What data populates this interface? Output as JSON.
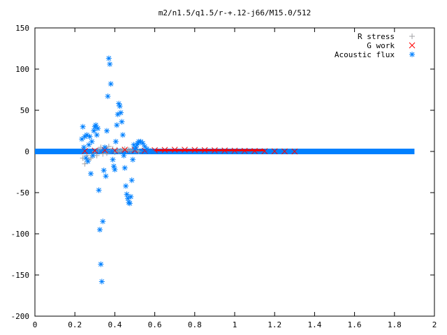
{
  "chart_data": {
    "type": "scatter",
    "title": "m2/n1.5/q1.5/r-+.12-j66/M15.0/512",
    "xlabel": "",
    "ylabel": "",
    "xlim": [
      0,
      2
    ],
    "ylim": [
      -200,
      150
    ],
    "x_ticks": [
      0,
      0.2,
      0.4,
      0.6,
      0.8,
      1,
      1.2,
      1.4,
      1.6,
      1.8,
      2
    ],
    "x_tick_labels": [
      "0",
      "0.2",
      "0.4",
      "0.6",
      "0.8",
      "1",
      "1.2",
      "1.4",
      "1.6",
      "1.8",
      "2"
    ],
    "y_ticks": [
      -200,
      -150,
      -100,
      -50,
      0,
      50,
      100,
      150
    ],
    "y_tick_labels": [
      "-200",
      "-150",
      "-100",
      "-50",
      "0",
      "50",
      "100",
      "150"
    ],
    "grid": false,
    "legend_position": "top-right",
    "series": [
      {
        "name": "R stress",
        "color": "#a0a0a4",
        "marker": "plus",
        "x": [
          0.24,
          0.25,
          0.26,
          0.27,
          0.28,
          0.29,
          0.3,
          0.31,
          0.32,
          0.33,
          0.34,
          0.35,
          0.36,
          0.37,
          0.38,
          0.39,
          0.4,
          0.41,
          0.42,
          0.43,
          0.44,
          0.45,
          0.46,
          0.47,
          0.48,
          0.49,
          0.5,
          0.51,
          0.52
        ],
        "y": [
          -8,
          -15,
          -5,
          -10,
          -8,
          -3,
          0,
          -5,
          2,
          5,
          -3,
          4,
          -2,
          6,
          1,
          3,
          -1,
          2,
          0,
          1,
          2,
          3,
          1,
          2,
          1,
          2,
          1,
          1,
          0
        ]
      },
      {
        "name": "G work",
        "color": "#ff0000",
        "marker": "cross",
        "x": [
          0.25,
          0.3,
          0.35,
          0.4,
          0.45,
          0.5,
          0.55,
          0.6,
          0.65,
          0.7,
          0.75,
          0.8,
          0.85,
          0.9,
          0.95,
          1.0,
          1.05,
          1.1,
          1.15,
          1.2,
          1.25,
          1.3
        ],
        "y": [
          0.5,
          1,
          1.5,
          1,
          2,
          1.5,
          1,
          1.5,
          1.8,
          2,
          2,
          1.8,
          1.6,
          1.4,
          1.2,
          1,
          0.8,
          0.5,
          0.3,
          0.2,
          0.1,
          0
        ]
      },
      {
        "name": "Acoustic flux",
        "color": "#0080ff",
        "marker": "star",
        "x": [
          0.235,
          0.24,
          0.245,
          0.25,
          0.255,
          0.26,
          0.265,
          0.27,
          0.275,
          0.28,
          0.285,
          0.29,
          0.295,
          0.3,
          0.305,
          0.31,
          0.315,
          0.32,
          0.325,
          0.33,
          0.335,
          0.34,
          0.345,
          0.35,
          0.355,
          0.36,
          0.365,
          0.37,
          0.375,
          0.38,
          0.385,
          0.39,
          0.395,
          0.4,
          0.405,
          0.41,
          0.415,
          0.42,
          0.425,
          0.43,
          0.435,
          0.44,
          0.445,
          0.45,
          0.455,
          0.46,
          0.465,
          0.47,
          0.475,
          0.48,
          0.485,
          0.49,
          0.495,
          0.5,
          0.505,
          0.51,
          0.515,
          0.52,
          0.53,
          0.54,
          0.55,
          0.56,
          0.57,
          0.58,
          0.59
        ],
        "y": [
          15,
          30,
          5,
          18,
          -8,
          20,
          -12,
          8,
          18,
          -27,
          12,
          -5,
          25,
          30,
          32,
          20,
          28,
          -47,
          -95,
          -137,
          -158,
          -85,
          -23,
          5,
          -30,
          25,
          67,
          113,
          106,
          82,
          0,
          -10,
          -18,
          -22,
          12,
          32,
          45,
          58,
          55,
          47,
          36,
          20,
          -5,
          -20,
          -42,
          -52,
          -57,
          -62,
          -63,
          -55,
          -35,
          -10,
          8,
          3,
          5,
          8,
          10,
          12,
          12,
          10,
          6,
          3,
          1,
          0.5,
          0
        ]
      }
    ]
  }
}
